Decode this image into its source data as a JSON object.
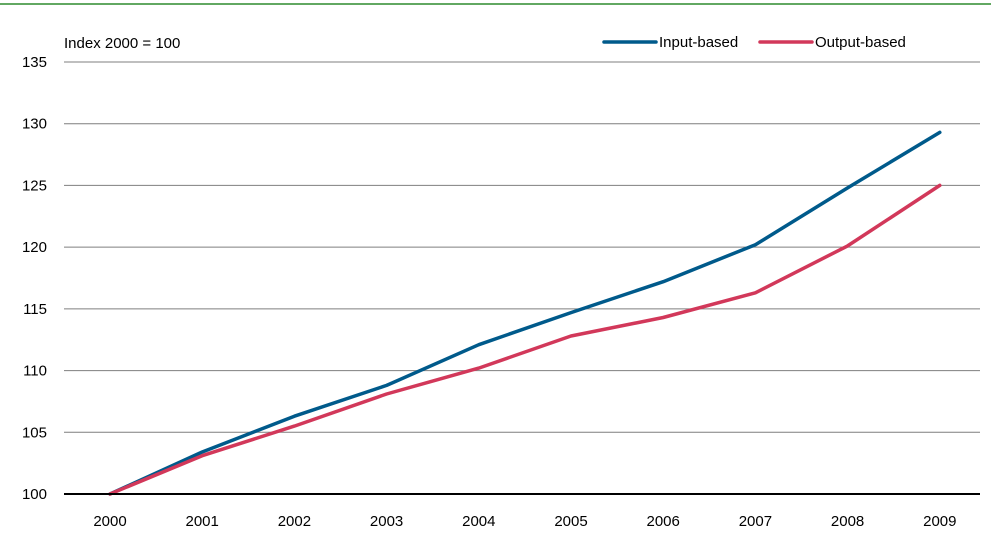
{
  "chart_data": {
    "type": "line",
    "unit_label": "Index 2000 = 100",
    "x": [
      "2000",
      "2001",
      "2002",
      "2003",
      "2004",
      "2005",
      "2006",
      "2007",
      "2008",
      "2009"
    ],
    "series": [
      {
        "name": "Input-based",
        "color": "#005a8b",
        "values": [
          100,
          103.4,
          106.3,
          108.8,
          112.1,
          114.7,
          117.2,
          120.2,
          124.8,
          129.3
        ]
      },
      {
        "name": "Output-based",
        "color": "#d2385a",
        "values": [
          100,
          103.1,
          105.5,
          108.1,
          110.2,
          112.8,
          114.3,
          116.3,
          120.1,
          125.0
        ]
      }
    ],
    "yticks": [
      100,
      105,
      110,
      115,
      120,
      125,
      130,
      135
    ],
    "ylim": [
      100,
      135
    ],
    "grid": true,
    "legend_position": "top-right",
    "frame_color": "#2e8b2e"
  }
}
